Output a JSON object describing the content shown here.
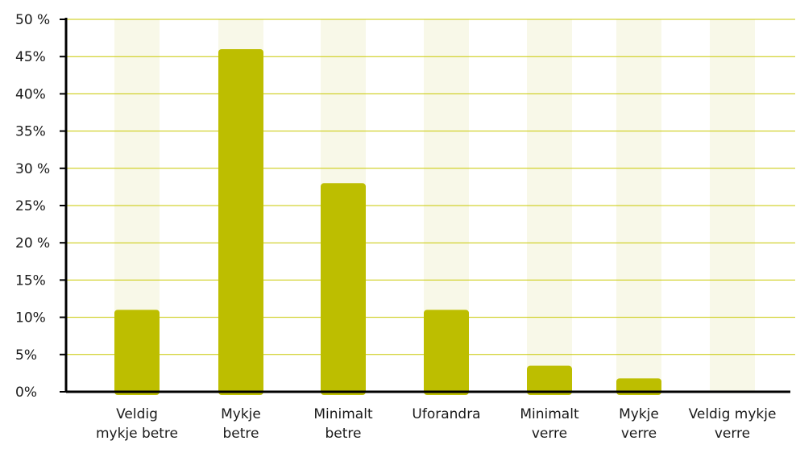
{
  "chart_data": {
    "type": "bar",
    "categories": [
      [
        "Veldig",
        "mykje betre"
      ],
      [
        "Mykje",
        "betre"
      ],
      [
        "Minimalt",
        "betre"
      ],
      [
        "Uforandra"
      ],
      [
        "Minimalt",
        "verre"
      ],
      [
        "Mykje",
        "verre"
      ],
      [
        "Veldig mykje",
        "verre"
      ]
    ],
    "values": [
      11,
      46,
      28,
      11,
      3.5,
      1.8,
      0
    ],
    "ylim": [
      0,
      50
    ],
    "yticks": [
      {
        "value": 0,
        "label": "0%"
      },
      {
        "value": 5,
        "label": "5%"
      },
      {
        "value": 10,
        "label": "10%"
      },
      {
        "value": 15,
        "label": "15%"
      },
      {
        "value": 20,
        "label": "20 %"
      },
      {
        "value": 25,
        "label": "25%"
      },
      {
        "value": 30,
        "label": "30 %"
      },
      {
        "value": 35,
        "label": "35%"
      },
      {
        "value": 40,
        "label": "40%"
      },
      {
        "value": 45,
        "label": "45%"
      },
      {
        "value": 50,
        "label": "50 %"
      }
    ],
    "grid": true,
    "colors": {
      "bar": "#bdbe00",
      "bar_background": "#f8f8e8",
      "grid": "#c8c800",
      "axis": "#000000"
    }
  }
}
